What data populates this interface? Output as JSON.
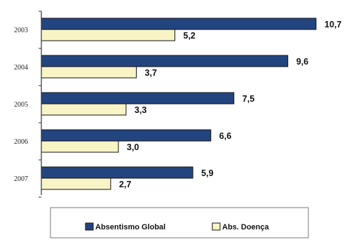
{
  "chart_data": {
    "type": "bar",
    "orientation": "horizontal",
    "categories": [
      "2003",
      "2004",
      "2005",
      "2006",
      "2007"
    ],
    "series": [
      {
        "name": "Absentismo Global",
        "values": [
          10.7,
          9.6,
          7.5,
          6.6,
          5.9
        ],
        "labels": [
          "10,7",
          "9,6",
          "7,5",
          "6,6",
          "5,9"
        ],
        "color": "#23457f"
      },
      {
        "name": "Abs. Doença",
        "values": [
          5.2,
          3.7,
          3.3,
          3.0,
          2.7
        ],
        "labels": [
          "5,2",
          "3,7",
          "3,3",
          "3,0",
          "2,7"
        ],
        "color": "#f8f4c6"
      }
    ],
    "xlim": [
      0,
      10.7
    ],
    "grid": false,
    "legend_position": "bottom"
  }
}
